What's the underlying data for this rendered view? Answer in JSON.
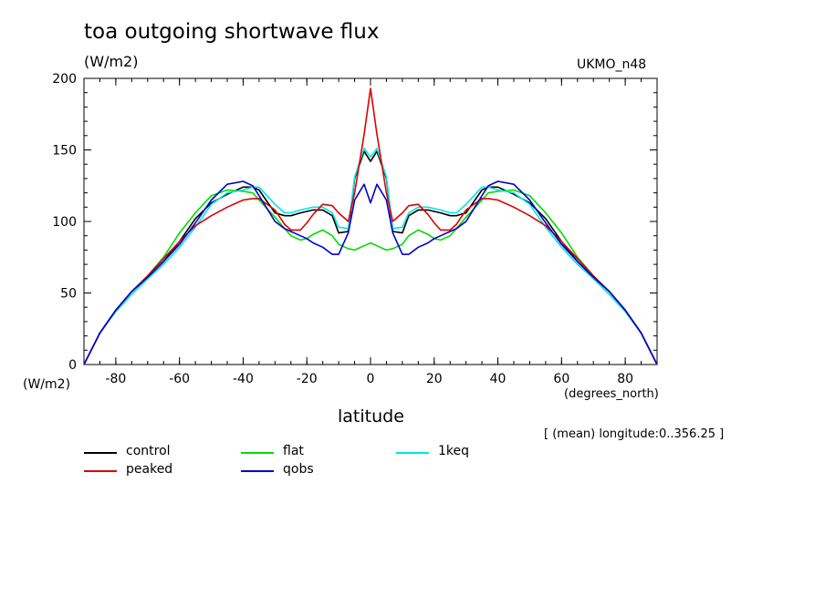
{
  "chart_data": {
    "type": "line",
    "title": "toa outgoing shortwave flux",
    "units": "(W/m2)",
    "model": "UKMO_n48",
    "y_units_label": "(W/m2)",
    "x_units_label": "(degrees_north)",
    "xlabel": "latitude",
    "note": "[ (mean) longitude:0..356.25 ]",
    "xlim": [
      -90,
      90
    ],
    "ylim": [
      0,
      200
    ],
    "xticks": [
      -80,
      -60,
      -40,
      -20,
      0,
      20,
      40,
      60,
      80
    ],
    "xtick_labels": [
      "-80",
      "-60",
      "-40",
      "-20",
      "0",
      "20",
      "40",
      "60",
      "80"
    ],
    "yticks": [
      0,
      50,
      100,
      150,
      200
    ],
    "ytick_labels": [
      "0",
      "50",
      "100",
      "150",
      "200"
    ],
    "series": [
      {
        "name": "control",
        "color": "#000000",
        "x": [
          -90,
          -85,
          -80,
          -75,
          -70,
          -65,
          -60,
          -55,
          -50,
          -45,
          -40,
          -37,
          -35,
          -30,
          -27,
          -25,
          -22,
          -20,
          -18,
          -15,
          -12,
          -10,
          -7,
          -5,
          -2,
          0,
          2,
          5,
          7,
          10,
          12,
          15,
          18,
          20,
          22,
          25,
          27,
          30,
          35,
          37,
          40,
          45,
          50,
          55,
          60,
          65,
          70,
          75,
          80,
          85,
          90
        ],
        "y": [
          0,
          22,
          38,
          51,
          61,
          72,
          86,
          102,
          113,
          119,
          124,
          124,
          122,
          106,
          104,
          104,
          106,
          107,
          108,
          108,
          104,
          92,
          93,
          130,
          149,
          142,
          149,
          130,
          93,
          92,
          104,
          108,
          108,
          107,
          106,
          104,
          104,
          106,
          122,
          124,
          124,
          119,
          113,
          102,
          86,
          72,
          61,
          51,
          38,
          22,
          0
        ]
      },
      {
        "name": "flat",
        "color": "#00dd00",
        "x": [
          -90,
          -85,
          -80,
          -75,
          -70,
          -65,
          -60,
          -55,
          -50,
          -45,
          -40,
          -37,
          -35,
          -30,
          -27,
          -25,
          -22,
          -20,
          -18,
          -15,
          -12,
          -10,
          -7,
          -5,
          -2,
          0,
          2,
          5,
          7,
          10,
          12,
          15,
          18,
          20,
          22,
          25,
          27,
          30,
          35,
          37,
          40,
          45,
          50,
          55,
          60,
          65,
          70,
          75,
          80,
          85,
          90
        ],
        "y": [
          0,
          22,
          38,
          51,
          62,
          75,
          92,
          106,
          118,
          122,
          121,
          120,
          115,
          103,
          95,
          90,
          87,
          88,
          91,
          94,
          90,
          84,
          81,
          80,
          83,
          85,
          83,
          80,
          81,
          84,
          90,
          94,
          91,
          88,
          87,
          90,
          95,
          103,
          115,
          120,
          121,
          122,
          118,
          106,
          92,
          75,
          62,
          51,
          38,
          22,
          0
        ]
      },
      {
        "name": "1keq",
        "color": "#00e5e5",
        "x": [
          -90,
          -85,
          -80,
          -75,
          -70,
          -65,
          -60,
          -55,
          -50,
          -45,
          -40,
          -37,
          -35,
          -30,
          -27,
          -25,
          -22,
          -20,
          -18,
          -15,
          -12,
          -10,
          -7,
          -5,
          -2,
          0,
          2,
          5,
          7,
          10,
          12,
          15,
          18,
          20,
          22,
          25,
          27,
          30,
          35,
          37,
          40,
          45,
          50,
          55,
          60,
          65,
          70,
          75,
          80,
          85,
          90
        ],
        "y": [
          0,
          22,
          37,
          49,
          60,
          70,
          82,
          96,
          112,
          120,
          122,
          124,
          124,
          112,
          106,
          106,
          108,
          109,
          110,
          110,
          106,
          96,
          95,
          131,
          151,
          145,
          151,
          131,
          95,
          96,
          106,
          110,
          110,
          109,
          108,
          106,
          106,
          112,
          124,
          124,
          122,
          120,
          112,
          96,
          82,
          70,
          60,
          49,
          37,
          22,
          0
        ]
      },
      {
        "name": "peaked",
        "color": "#dd0000",
        "x": [
          -90,
          -85,
          -80,
          -75,
          -70,
          -65,
          -60,
          -55,
          -50,
          -45,
          -40,
          -37,
          -35,
          -30,
          -27,
          -25,
          -22,
          -20,
          -18,
          -15,
          -12,
          -10,
          -7,
          -5,
          -2,
          0,
          2,
          5,
          7,
          10,
          12,
          15,
          18,
          20,
          22,
          25,
          27,
          30,
          35,
          37,
          40,
          45,
          50,
          55,
          60,
          65,
          70,
          75,
          80,
          85,
          90
        ],
        "y": [
          0,
          22,
          38,
          51,
          62,
          74,
          86,
          97,
          104,
          110,
          115,
          116,
          116,
          108,
          98,
          94,
          94,
          99,
          105,
          112,
          111,
          106,
          100,
          120,
          161,
          193,
          161,
          120,
          100,
          106,
          111,
          112,
          105,
          99,
          94,
          94,
          98,
          108,
          116,
          116,
          115,
          110,
          104,
          97,
          86,
          74,
          62,
          51,
          38,
          22,
          0
        ]
      },
      {
        "name": "qobs",
        "color": "#0000cc",
        "x": [
          -90,
          -85,
          -80,
          -75,
          -70,
          -65,
          -60,
          -55,
          -50,
          -45,
          -40,
          -37,
          -35,
          -30,
          -27,
          -25,
          -22,
          -20,
          -18,
          -15,
          -12,
          -10,
          -7,
          -5,
          -2,
          0,
          2,
          5,
          7,
          10,
          12,
          15,
          18,
          20,
          22,
          25,
          27,
          30,
          35,
          37,
          40,
          45,
          50,
          55,
          60,
          65,
          70,
          75,
          80,
          85,
          90
        ],
        "y": [
          0,
          22,
          38,
          51,
          61,
          72,
          84,
          99,
          115,
          126,
          128,
          125,
          118,
          100,
          95,
          93,
          90,
          88,
          85,
          82,
          77,
          77,
          92,
          115,
          126,
          113,
          126,
          115,
          92,
          77,
          77,
          82,
          85,
          88,
          90,
          93,
          95,
          100,
          118,
          125,
          128,
          126,
          115,
          99,
          84,
          72,
          61,
          51,
          38,
          22,
          0
        ]
      }
    ],
    "legend_order": [
      "control",
      "flat",
      "1keq",
      "peaked",
      "qobs"
    ]
  }
}
